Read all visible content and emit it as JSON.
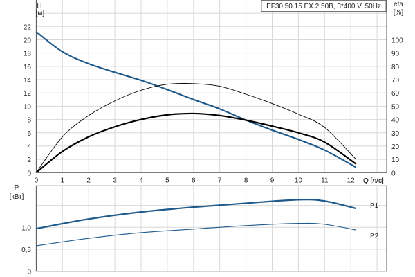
{
  "chart_data": [
    {
      "type": "line",
      "title": "EF30.50.15.EX.2.50B, 3*400 V, 50Hz",
      "xlabel": "Q [л/с]",
      "ylabel": "H",
      "yunit": "[м]",
      "y2label": "eta",
      "y2unit": "[%]",
      "xlim": [
        0,
        13.4
      ],
      "ylim": [
        0,
        24.8
      ],
      "y2lim": [
        0,
        124
      ],
      "xticks": [
        "0",
        "1",
        "2",
        "3",
        "4",
        "5",
        "6",
        "7",
        "8",
        "9",
        "10",
        "11",
        "12"
      ],
      "yticks": [
        "0",
        "2",
        "4",
        "6",
        "8",
        "10",
        "12",
        "14",
        "16",
        "18",
        "20",
        "22"
      ],
      "y2ticks": [
        "0",
        "10",
        "20",
        "30",
        "40",
        "50",
        "60",
        "70",
        "80",
        "90",
        "100"
      ],
      "grid": true,
      "series": [
        {
          "axis": "H",
          "color": "#1f5a8c",
          "width": 2.2,
          "x": [
            0,
            1,
            2,
            3,
            4,
            5,
            6,
            7,
            8,
            9,
            10,
            11,
            12.2
          ],
          "y": [
            21.2,
            18.2,
            16.4,
            15.1,
            13.9,
            12.5,
            11.0,
            9.6,
            7.9,
            6.4,
            5.0,
            3.4,
            0.8
          ]
        },
        {
          "axis": "eta",
          "color": "#000000",
          "width": 0.9,
          "x": [
            0,
            1,
            2,
            3,
            4,
            5,
            6,
            7,
            8,
            9,
            10,
            11,
            12.2
          ],
          "y": [
            0,
            27,
            43,
            54,
            62,
            66.5,
            67,
            65,
            59,
            52,
            44,
            34,
            10
          ]
        },
        {
          "axis": "eta",
          "color": "#000000",
          "width": 2.2,
          "x": [
            0,
            1,
            2,
            3,
            4,
            5,
            6,
            7,
            8,
            9,
            10,
            11,
            12.2
          ],
          "y": [
            0,
            16,
            27,
            34.5,
            40,
            43.5,
            44.5,
            43,
            39.5,
            35,
            30,
            23,
            6.5
          ]
        }
      ]
    },
    {
      "type": "line",
      "xlabel": "Q [л/с]",
      "ylabel": "P",
      "yunit": "[кВт]",
      "xlim": [
        0,
        13.4
      ],
      "ylim": [
        0,
        1.87
      ],
      "xticks": [
        "0",
        "1",
        "2",
        "3",
        "4",
        "5",
        "6",
        "7",
        "8",
        "9",
        "10",
        "11",
        "12"
      ],
      "yticks": [
        {
          "v": 0,
          "label": "0"
        },
        {
          "v": 0.5,
          "label": "0,5"
        },
        {
          "v": 1.0,
          "label": "1,0"
        },
        {
          "v": 1.5,
          "label": ""
        }
      ],
      "grid": true,
      "series": [
        {
          "name": "P1",
          "color": "#1f5a8c",
          "width": 2.2,
          "x": [
            0,
            2,
            4,
            6,
            8,
            10,
            11,
            12.2
          ],
          "y": [
            0.97,
            1.19,
            1.35,
            1.46,
            1.55,
            1.63,
            1.6,
            1.43
          ]
        },
        {
          "name": "P2",
          "color": "#1f5a8c",
          "width": 1.1,
          "x": [
            0,
            2,
            4,
            6,
            8,
            10,
            11,
            12.2
          ],
          "y": [
            0.58,
            0.75,
            0.88,
            0.96,
            1.04,
            1.09,
            1.07,
            0.94
          ]
        }
      ]
    }
  ]
}
